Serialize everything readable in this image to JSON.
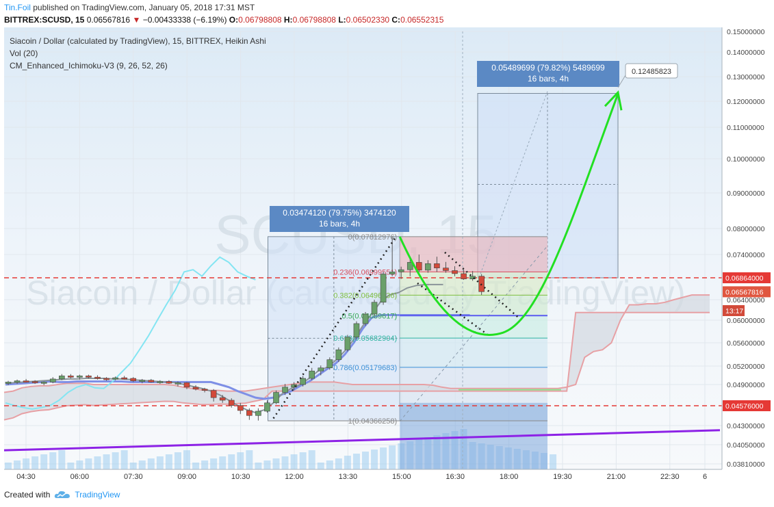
{
  "header": {
    "author": "Tin.Foil",
    "published": "published on TradingView.com, January 05, 2018 17:31 MST",
    "symbol_line": "BITTREX:SCUSD, 15",
    "last": "0.06567816",
    "change_arrow": "▼",
    "change": "−0.00433338 (−6.19%)",
    "o_label": "O:",
    "o": "0.06798808",
    "h_label": "H:",
    "h": "0.06798808",
    "l_label": "L:",
    "l": "0.06502330",
    "c_label": "C:",
    "c": "0.06552315"
  },
  "legend": {
    "title": "Siacoin / Dollar (calculated by TradingView), 15, BITTREX, Heikin Ashi",
    "vol": "Vol (20)",
    "indicator": "CM_Enhanced_Ichimoku-V3 (9, 26, 52, 26)"
  },
  "watermark": {
    "symbol": "SCUSD, 15",
    "name": "Siacoin / Dollar (calculated by TradingView)"
  },
  "footer": {
    "created": "Created with",
    "brand": "TradingView"
  },
  "colors": {
    "up": "#6aa06a",
    "down": "#d24a3a",
    "ichimoku_red": "#e7a0a4",
    "kumo_fill": "#d3d9e0",
    "conversion": "#7e8fe6",
    "lagging": "#84e5f2",
    "fib_line": "#5b5bf0",
    "trendline": "#8d22e6",
    "projection": "#22e022",
    "hline": "#e53935"
  },
  "chart_data": {
    "type": "candlestick",
    "x_tick_labels": [
      "04:30",
      "06:00",
      "07:30",
      "09:00",
      "10:30",
      "12:00",
      "13:30",
      "15:00",
      "16:30",
      "18:00",
      "19:30",
      "21:00",
      "22:30",
      "6"
    ],
    "y_tick_labels": [
      "0.15000000",
      "0.14000000",
      "0.13000000",
      "0.12000000",
      "0.11000000",
      "0.10000000",
      "0.09000000",
      "0.08000000",
      "0.07400000",
      "0.06400000",
      "0.06000000",
      "0.05600000",
      "0.05200000",
      "0.04900000",
      "0.04300000",
      "0.04050000",
      "0.03810000"
    ],
    "y_axis_tag_labels": [
      "0.06864000",
      "0.06567816",
      "13:17",
      "0.04576000"
    ],
    "horizontal_levels": [
      0.06864,
      0.04576
    ],
    "candles_approx": [
      [
        0.0492,
        0.0496,
        0.0489,
        0.0494
      ],
      [
        0.0494,
        0.0498,
        0.0491,
        0.0496
      ],
      [
        0.0496,
        0.0499,
        0.0493,
        0.0495
      ],
      [
        0.0495,
        0.0497,
        0.0491,
        0.0493
      ],
      [
        0.0493,
        0.0495,
        0.0489,
        0.0494
      ],
      [
        0.0494,
        0.0502,
        0.0492,
        0.0499
      ],
      [
        0.0499,
        0.0507,
        0.0497,
        0.0504
      ],
      [
        0.0504,
        0.0507,
        0.05,
        0.0502
      ],
      [
        0.0502,
        0.0506,
        0.0498,
        0.0504
      ],
      [
        0.0504,
        0.0506,
        0.05,
        0.0502
      ],
      [
        0.0502,
        0.0505,
        0.0498,
        0.05
      ],
      [
        0.05,
        0.0502,
        0.0496,
        0.0499
      ],
      [
        0.0499,
        0.0503,
        0.0497,
        0.0501
      ],
      [
        0.0501,
        0.0504,
        0.0498,
        0.05
      ],
      [
        0.05,
        0.0502,
        0.0494,
        0.0496
      ],
      [
        0.0496,
        0.0499,
        0.0492,
        0.0497
      ],
      [
        0.0497,
        0.0499,
        0.0493,
        0.0494
      ],
      [
        0.0494,
        0.0497,
        0.0491,
        0.0495
      ],
      [
        0.0495,
        0.0497,
        0.0491,
        0.0492
      ],
      [
        0.0492,
        0.0495,
        0.0487,
        0.0493
      ],
      [
        0.0493,
        0.0494,
        0.0483,
        0.0486
      ],
      [
        0.0486,
        0.0489,
        0.0481,
        0.0483
      ],
      [
        0.0483,
        0.0485,
        0.0478,
        0.0481
      ],
      [
        0.0481,
        0.0483,
        0.0464,
        0.047
      ],
      [
        0.047,
        0.0474,
        0.0462,
        0.0466
      ],
      [
        0.0466,
        0.0469,
        0.0455,
        0.0458
      ],
      [
        0.0458,
        0.0462,
        0.0446,
        0.0451
      ],
      [
        0.0451,
        0.0454,
        0.0438,
        0.0444
      ],
      [
        0.0444,
        0.0454,
        0.0437,
        0.045
      ],
      [
        0.045,
        0.0466,
        0.0448,
        0.0462
      ],
      [
        0.0462,
        0.0481,
        0.046,
        0.0478
      ],
      [
        0.0478,
        0.0491,
        0.0474,
        0.0486
      ],
      [
        0.0486,
        0.0494,
        0.0482,
        0.049
      ],
      [
        0.049,
        0.0504,
        0.0487,
        0.05
      ],
      [
        0.05,
        0.0517,
        0.0497,
        0.0512
      ],
      [
        0.0512,
        0.0521,
        0.0505,
        0.0517
      ],
      [
        0.0517,
        0.0535,
        0.0514,
        0.0531
      ],
      [
        0.0531,
        0.0552,
        0.0527,
        0.0548
      ],
      [
        0.0548,
        0.0574,
        0.0545,
        0.057
      ],
      [
        0.057,
        0.0598,
        0.0566,
        0.0594
      ],
      [
        0.0594,
        0.0616,
        0.059,
        0.0612
      ],
      [
        0.0612,
        0.064,
        0.0608,
        0.0635
      ],
      [
        0.0635,
        0.07,
        0.063,
        0.0695
      ],
      [
        0.0695,
        0.0781,
        0.069,
        0.07
      ],
      [
        0.07,
        0.0712,
        0.0684,
        0.0705
      ],
      [
        0.0705,
        0.0735,
        0.069,
        0.0722
      ],
      [
        0.0722,
        0.074,
        0.07,
        0.0704
      ],
      [
        0.0704,
        0.0727,
        0.0698,
        0.0719
      ],
      [
        0.0719,
        0.0735,
        0.07,
        0.0709
      ],
      [
        0.0709,
        0.0723,
        0.0698,
        0.0703
      ],
      [
        0.0703,
        0.0713,
        0.069,
        0.0696
      ],
      [
        0.0696,
        0.0705,
        0.0682,
        0.0684
      ],
      [
        0.0684,
        0.0702,
        0.068,
        0.069
      ],
      [
        0.069,
        0.0695,
        0.065,
        0.0657
      ]
    ],
    "fibonacci": [
      {
        "label": "0(0.07812976)",
        "value": 0.07812976
      },
      {
        "label": "0.236(0.06999551)",
        "value": 0.06999551
      },
      {
        "label": "0.382(0.06496336)",
        "value": 0.06496336
      },
      {
        "label": "0.5(0.06089617)",
        "value": 0.06089617
      },
      {
        "label": "0.618(0.05682904)",
        "value": 0.05682904
      },
      {
        "label": "0.786(0.05179683)",
        "value": 0.05179683
      },
      {
        "label": "1(0.04366258)",
        "value": 0.04366258
      }
    ],
    "measure_boxes": [
      {
        "line1": "0.03474120 (79.75%) 3474120",
        "line2": "16 bars, 4h"
      },
      {
        "line1": "0.05489699 (79.82%) 5489699",
        "line2": "16 bars, 4h"
      }
    ],
    "target_label": "0.12485823"
  }
}
